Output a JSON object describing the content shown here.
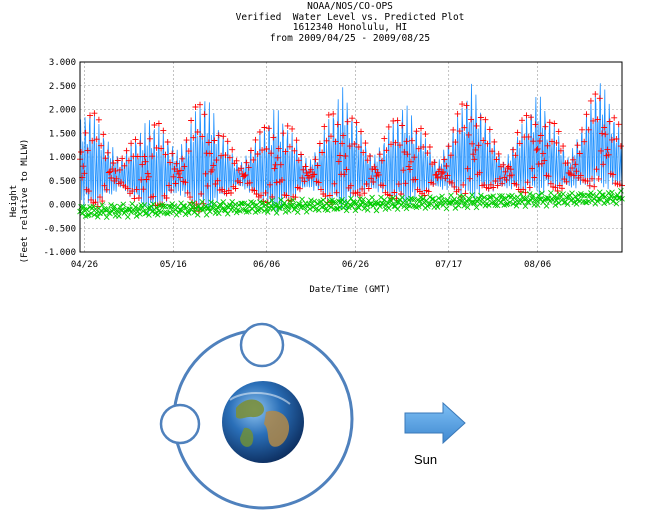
{
  "header": {
    "line1": "NOAA/NOS/CO-OPS",
    "line2": "Verified  Water Level vs. Predicted Plot",
    "line3": "1612340 Honolulu, HI",
    "line4": "from 2009/04/25 - 2009/08/25"
  },
  "chart_data": {
    "type": "line",
    "title": "NOAA/NOS/CO-OPS Verified  Water Level vs. Predicted Plot 1612340 Honolulu, HI from 2009/04/25 - 2009/08/25",
    "xlabel": "Date/Time (GMT)",
    "ylabel_line1": "Height",
    "ylabel_line2": "(Feet relative to MLLW)",
    "x_range": [
      "2009-04-25",
      "2009-08-25"
    ],
    "ylim": [
      -1.0,
      3.0
    ],
    "y_ticks": [
      "-1.000",
      "-0.500",
      "0.000",
      "0.500",
      "1.000",
      "1.500",
      "2.000",
      "2.500",
      "3.000"
    ],
    "x_ticks": [
      {
        "date": "2009-04-26",
        "label": "04/26"
      },
      {
        "date": "2009-05-16",
        "label": "05/16"
      },
      {
        "date": "2009-06-06",
        "label": "06/06"
      },
      {
        "date": "2009-06-26",
        "label": "06/26"
      },
      {
        "date": "2009-07-17",
        "label": "07/17"
      },
      {
        "date": "2009-08-06",
        "label": "08/06"
      }
    ],
    "grid": true,
    "series": [
      {
        "color": "#1e90ff",
        "style": "line",
        "values_description_range": [
          -0.3,
          2.6
        ]
      },
      {
        "color": "#ff0000",
        "style": "plus-markers",
        "values_description_range": [
          -0.5,
          2.75
        ]
      },
      {
        "color": "#00cc00",
        "style": "x-markers",
        "values_description_range": [
          -0.3,
          0.35
        ]
      }
    ],
    "envelope": {
      "high_tide_peaks": [
        {
          "date": "2009-04-27",
          "value": 2.1
        },
        {
          "date": "2009-05-11",
          "value": 1.9
        },
        {
          "date": "2009-05-23",
          "value": 2.4
        },
        {
          "date": "2009-06-08",
          "value": 2.1
        },
        {
          "date": "2009-06-23",
          "value": 2.5
        },
        {
          "date": "2009-07-07",
          "value": 2.2
        },
        {
          "date": "2009-07-22",
          "value": 2.6
        },
        {
          "date": "2009-08-06",
          "value": 2.4
        },
        {
          "date": "2009-08-20",
          "value": 2.7
        }
      ],
      "low_tide_troughs": [
        {
          "date": "2009-04-27",
          "value": -0.4
        },
        {
          "date": "2009-05-23",
          "value": -0.55
        },
        {
          "date": "2009-06-23",
          "value": -0.45
        },
        {
          "date": "2009-07-22",
          "value": -0.2
        },
        {
          "date": "2009-08-20",
          "value": 0.05
        }
      ]
    }
  },
  "diagram": {
    "sun_label": "Sun",
    "colors": {
      "orbit": "#4f81bd",
      "arrow": "#4f9fe0",
      "earth_ocean": "#2a6fb8",
      "earth_land": "#6f8f3a"
    }
  }
}
